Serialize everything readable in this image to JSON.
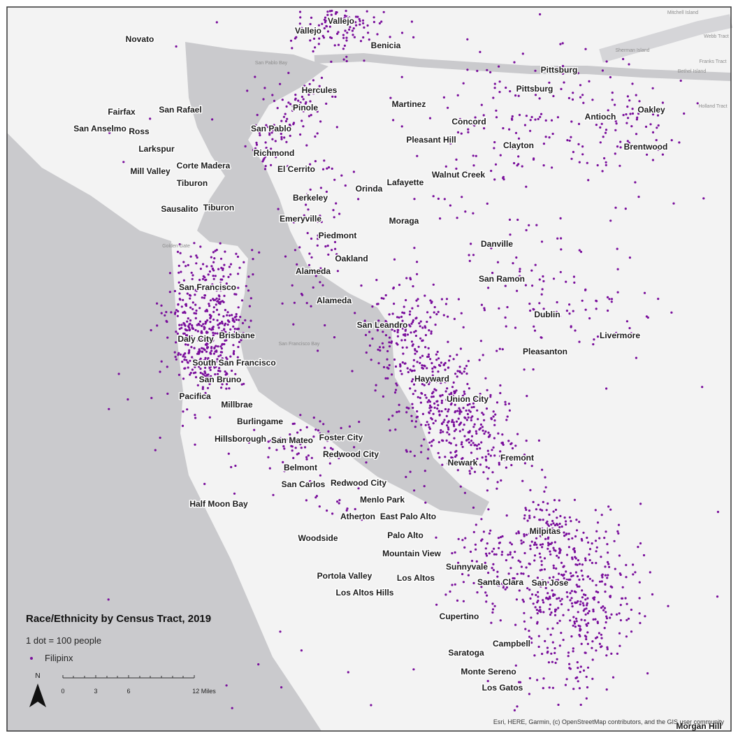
{
  "map": {
    "title": "Race/Ethnicity by Census Tract, 2019",
    "legend": {
      "unit_note": "1 dot = 100 people",
      "series": "Filipinx"
    },
    "north": "N",
    "scale": {
      "ticks": [
        "0",
        "3",
        "6"
      ],
      "end_label": "12 Miles"
    },
    "attribution": "Esri, HERE, Garmin, (c) OpenStreetMap contributors, and the GIS user community",
    "water_labels": [
      "San Pablo Bay",
      "San Francisco Bay",
      "Golden Gate",
      "Mitchell Island",
      "Webb Tract",
      "Sherman Island",
      "Franks Tract",
      "Bethel Island",
      "Holland Tract"
    ],
    "places": [
      "Novato",
      "Vallejo",
      "Vallejo",
      "Benicia",
      "Hercules",
      "Pinole",
      "Martinez",
      "Pittsburg",
      "Pittsburg",
      "Concord",
      "Antioch",
      "Oakley",
      "Fairfax",
      "San Rafael",
      "San Anselmo",
      "Ross",
      "San Pablo",
      "Pleasant Hill",
      "Clayton",
      "Brentwood",
      "Larkspur",
      "Richmond",
      "Corte Madera",
      "Mill Valley",
      "El Cerrito",
      "Walnut Creek",
      "Lafayette",
      "Orinda",
      "Tiburon",
      "Berkeley",
      "Sausalito",
      "Tiburon",
      "Emeryville",
      "Moraga",
      "Piedmont",
      "Danville",
      "Oakland",
      "Alameda",
      "San Ramon",
      "San Francisco",
      "Alameda",
      "Dublin",
      "San Leandro",
      "Livermore",
      "Brisbane",
      "Daly City",
      "Pleasanton",
      "South San Francisco",
      "Hayward",
      "San Bruno",
      "Pacifica",
      "Union City",
      "Millbrae",
      "Burlingame",
      "Foster City",
      "Hillsborough",
      "San Mateo",
      "Redwood City",
      "Fremont",
      "Newark",
      "Belmont",
      "San Carlos",
      "Redwood City",
      "Half Moon Bay",
      "Menlo Park",
      "Atherton",
      "East Palo Alto",
      "Milpitas",
      "Woodside",
      "Palo Alto",
      "Mountain View",
      "Sunnyvale",
      "Portola Valley",
      "Los Altos",
      "Santa Clara",
      "San Jose",
      "Los Altos Hills",
      "Cupertino",
      "Campbell",
      "Saratoga",
      "Monte Sereno",
      "Los Gatos",
      "Morgan Hill"
    ]
  }
}
